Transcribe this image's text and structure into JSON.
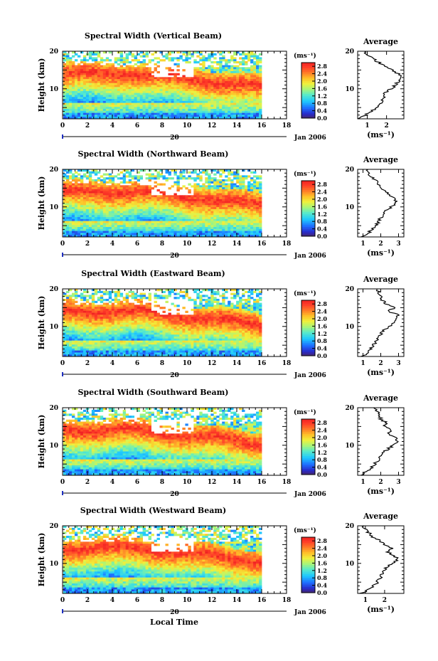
{
  "chart_data": [
    {
      "type": "heatmap",
      "title": "Spectral Width (Vertical Beam)",
      "xlabel": "",
      "ylabel": "Height (km)",
      "xlim": [
        0,
        18
      ],
      "ylim": [
        2,
        20
      ],
      "xticks": [
        "0",
        "2",
        "4",
        "6",
        "8",
        "10",
        "12",
        "14",
        "16",
        "18"
      ],
      "yticks": [
        "20",
        "10"
      ],
      "date_label": "20",
      "month_label": "Jan 2006",
      "colorbar": {
        "unit": "(ms⁻¹)",
        "ticks": [
          "2.8",
          "2.4",
          "2.0",
          "1.6",
          "1.2",
          "0.8",
          "0.4",
          "0.0"
        ],
        "range": [
          0,
          3.0
        ]
      },
      "profile": {
        "title": "Average",
        "xlabel": "(ms⁻¹)",
        "xticks": [
          "1",
          "2"
        ],
        "xlim": [
          0.5,
          2.9
        ],
        "heights": [
          2,
          3,
          4,
          5,
          6,
          7,
          8,
          9,
          10,
          11,
          12,
          13,
          14,
          15,
          16,
          17,
          18,
          19,
          20
        ],
        "values": [
          0.6,
          0.9,
          1.2,
          1.45,
          1.65,
          1.75,
          1.85,
          1.95,
          2.2,
          2.5,
          2.6,
          2.8,
          2.6,
          2.3,
          2.0,
          1.6,
          1.3,
          1.0,
          0.9
        ]
      }
    },
    {
      "type": "heatmap",
      "title": "Spectral Width (Northward Beam)",
      "xlabel": "",
      "ylabel": "Height (km)",
      "xlim": [
        0,
        18
      ],
      "ylim": [
        2,
        20
      ],
      "xticks": [
        "0",
        "2",
        "4",
        "6",
        "8",
        "10",
        "12",
        "14",
        "16",
        "18"
      ],
      "yticks": [
        "20",
        "10"
      ],
      "date_label": "20",
      "month_label": "Jan 2006",
      "colorbar": {
        "unit": "(ms⁻¹)",
        "ticks": [
          "2.8",
          "2.4",
          "2.0",
          "1.6",
          "1.2",
          "0.8",
          "0.4",
          "0.0"
        ],
        "range": [
          0,
          3.0
        ]
      },
      "profile": {
        "title": "Average",
        "xlabel": "(ms⁻¹)",
        "xticks": [
          "1",
          "2",
          "3"
        ],
        "xlim": [
          0.7,
          3.3
        ],
        "heights": [
          2,
          3,
          4,
          5,
          6,
          7,
          8,
          9,
          10,
          11,
          12,
          13,
          14,
          15,
          16,
          17,
          18,
          19,
          20
        ],
        "values": [
          1.0,
          1.3,
          1.5,
          1.7,
          1.85,
          2.0,
          2.1,
          2.3,
          2.6,
          2.9,
          2.8,
          2.5,
          2.3,
          2.1,
          1.9,
          1.7,
          1.5,
          1.3,
          1.2
        ]
      }
    },
    {
      "type": "heatmap",
      "title": "Spectral Width (Eastward Beam)",
      "xlabel": "",
      "ylabel": "Height (km)",
      "xlim": [
        0,
        18
      ],
      "ylim": [
        2,
        20
      ],
      "xticks": [
        "0",
        "2",
        "4",
        "6",
        "8",
        "10",
        "12",
        "14",
        "16",
        "18"
      ],
      "yticks": [
        "20",
        "10"
      ],
      "date_label": "20",
      "month_label": "Jan 2006",
      "colorbar": {
        "unit": "(ms⁻¹)",
        "ticks": [
          "2.8",
          "2.4",
          "2.0",
          "1.6",
          "1.2",
          "0.8",
          "0.4",
          "0.0"
        ],
        "range": [
          0,
          3.0
        ]
      },
      "profile": {
        "title": "Average",
        "xlabel": "(ms⁻¹)",
        "xticks": [
          "1",
          "2",
          "3"
        ],
        "xlim": [
          0.7,
          3.3
        ],
        "heights": [
          2,
          3,
          4,
          5,
          6,
          7,
          8,
          9,
          10,
          11,
          12,
          13,
          14,
          15,
          16,
          17,
          18,
          19,
          20
        ],
        "values": [
          1.0,
          1.2,
          1.4,
          1.6,
          1.75,
          1.9,
          2.0,
          2.2,
          2.5,
          2.7,
          2.9,
          3.0,
          2.4,
          2.8,
          2.3,
          2.1,
          2.0,
          1.9,
          1.8
        ]
      }
    },
    {
      "type": "heatmap",
      "title": "Spectral Width (Southward Beam)",
      "xlabel": "",
      "ylabel": "Height (km)",
      "xlim": [
        0,
        18
      ],
      "ylim": [
        2,
        20
      ],
      "xticks": [
        "0",
        "2",
        "4",
        "6",
        "8",
        "10",
        "12",
        "14",
        "16",
        "18"
      ],
      "yticks": [
        "20",
        "10"
      ],
      "date_label": "20",
      "month_label": "Jan 2006",
      "colorbar": {
        "unit": "(ms⁻¹)",
        "ticks": [
          "2.8",
          "2.4",
          "2.0",
          "1.6",
          "1.2",
          "0.8",
          "0.4",
          "0.0"
        ],
        "range": [
          0,
          3.0
        ]
      },
      "profile": {
        "title": "Average",
        "xlabel": "(ms⁻¹)",
        "xticks": [
          "1",
          "2",
          "3"
        ],
        "xlim": [
          0.7,
          3.3
        ],
        "heights": [
          2,
          3,
          4,
          5,
          6,
          7,
          8,
          9,
          10,
          11,
          12,
          13,
          14,
          15,
          16,
          17,
          18,
          19,
          20
        ],
        "values": [
          1.0,
          1.2,
          1.45,
          1.65,
          1.85,
          2.0,
          2.15,
          2.4,
          2.7,
          3.0,
          2.8,
          2.4,
          2.6,
          2.2,
          2.3,
          2.0,
          1.9,
          1.8,
          1.7
        ]
      }
    },
    {
      "type": "heatmap",
      "title": "Spectral Width (Westward Beam)",
      "xlabel": "Local Time",
      "ylabel": "Height (km)",
      "xlim": [
        0,
        18
      ],
      "ylim": [
        2,
        20
      ],
      "xticks": [
        "0",
        "2",
        "4",
        "6",
        "8",
        "10",
        "12",
        "14",
        "16",
        "18"
      ],
      "yticks": [
        "20",
        "10"
      ],
      "date_label": "20",
      "month_label": "Jan 2006",
      "colorbar": {
        "unit": "(ms⁻¹)",
        "ticks": [
          "2.8",
          "2.4",
          "2.0",
          "1.6",
          "1.2",
          "0.8",
          "0.4",
          "0.0"
        ],
        "range": [
          0,
          3.0
        ]
      },
      "profile": {
        "title": "Average",
        "xlabel": "(ms⁻¹)",
        "xticks": [
          "1",
          "2"
        ],
        "xlim": [
          0.6,
          3.0
        ],
        "heights": [
          2,
          3,
          4,
          5,
          6,
          7,
          8,
          9,
          10,
          11,
          12,
          13,
          14,
          15,
          16,
          17,
          18,
          19,
          20
        ],
        "values": [
          0.8,
          1.2,
          1.45,
          1.6,
          1.75,
          1.85,
          1.95,
          2.1,
          2.4,
          2.7,
          2.5,
          2.2,
          2.4,
          2.0,
          1.8,
          1.4,
          1.2,
          1.0,
          0.9
        ]
      }
    }
  ]
}
